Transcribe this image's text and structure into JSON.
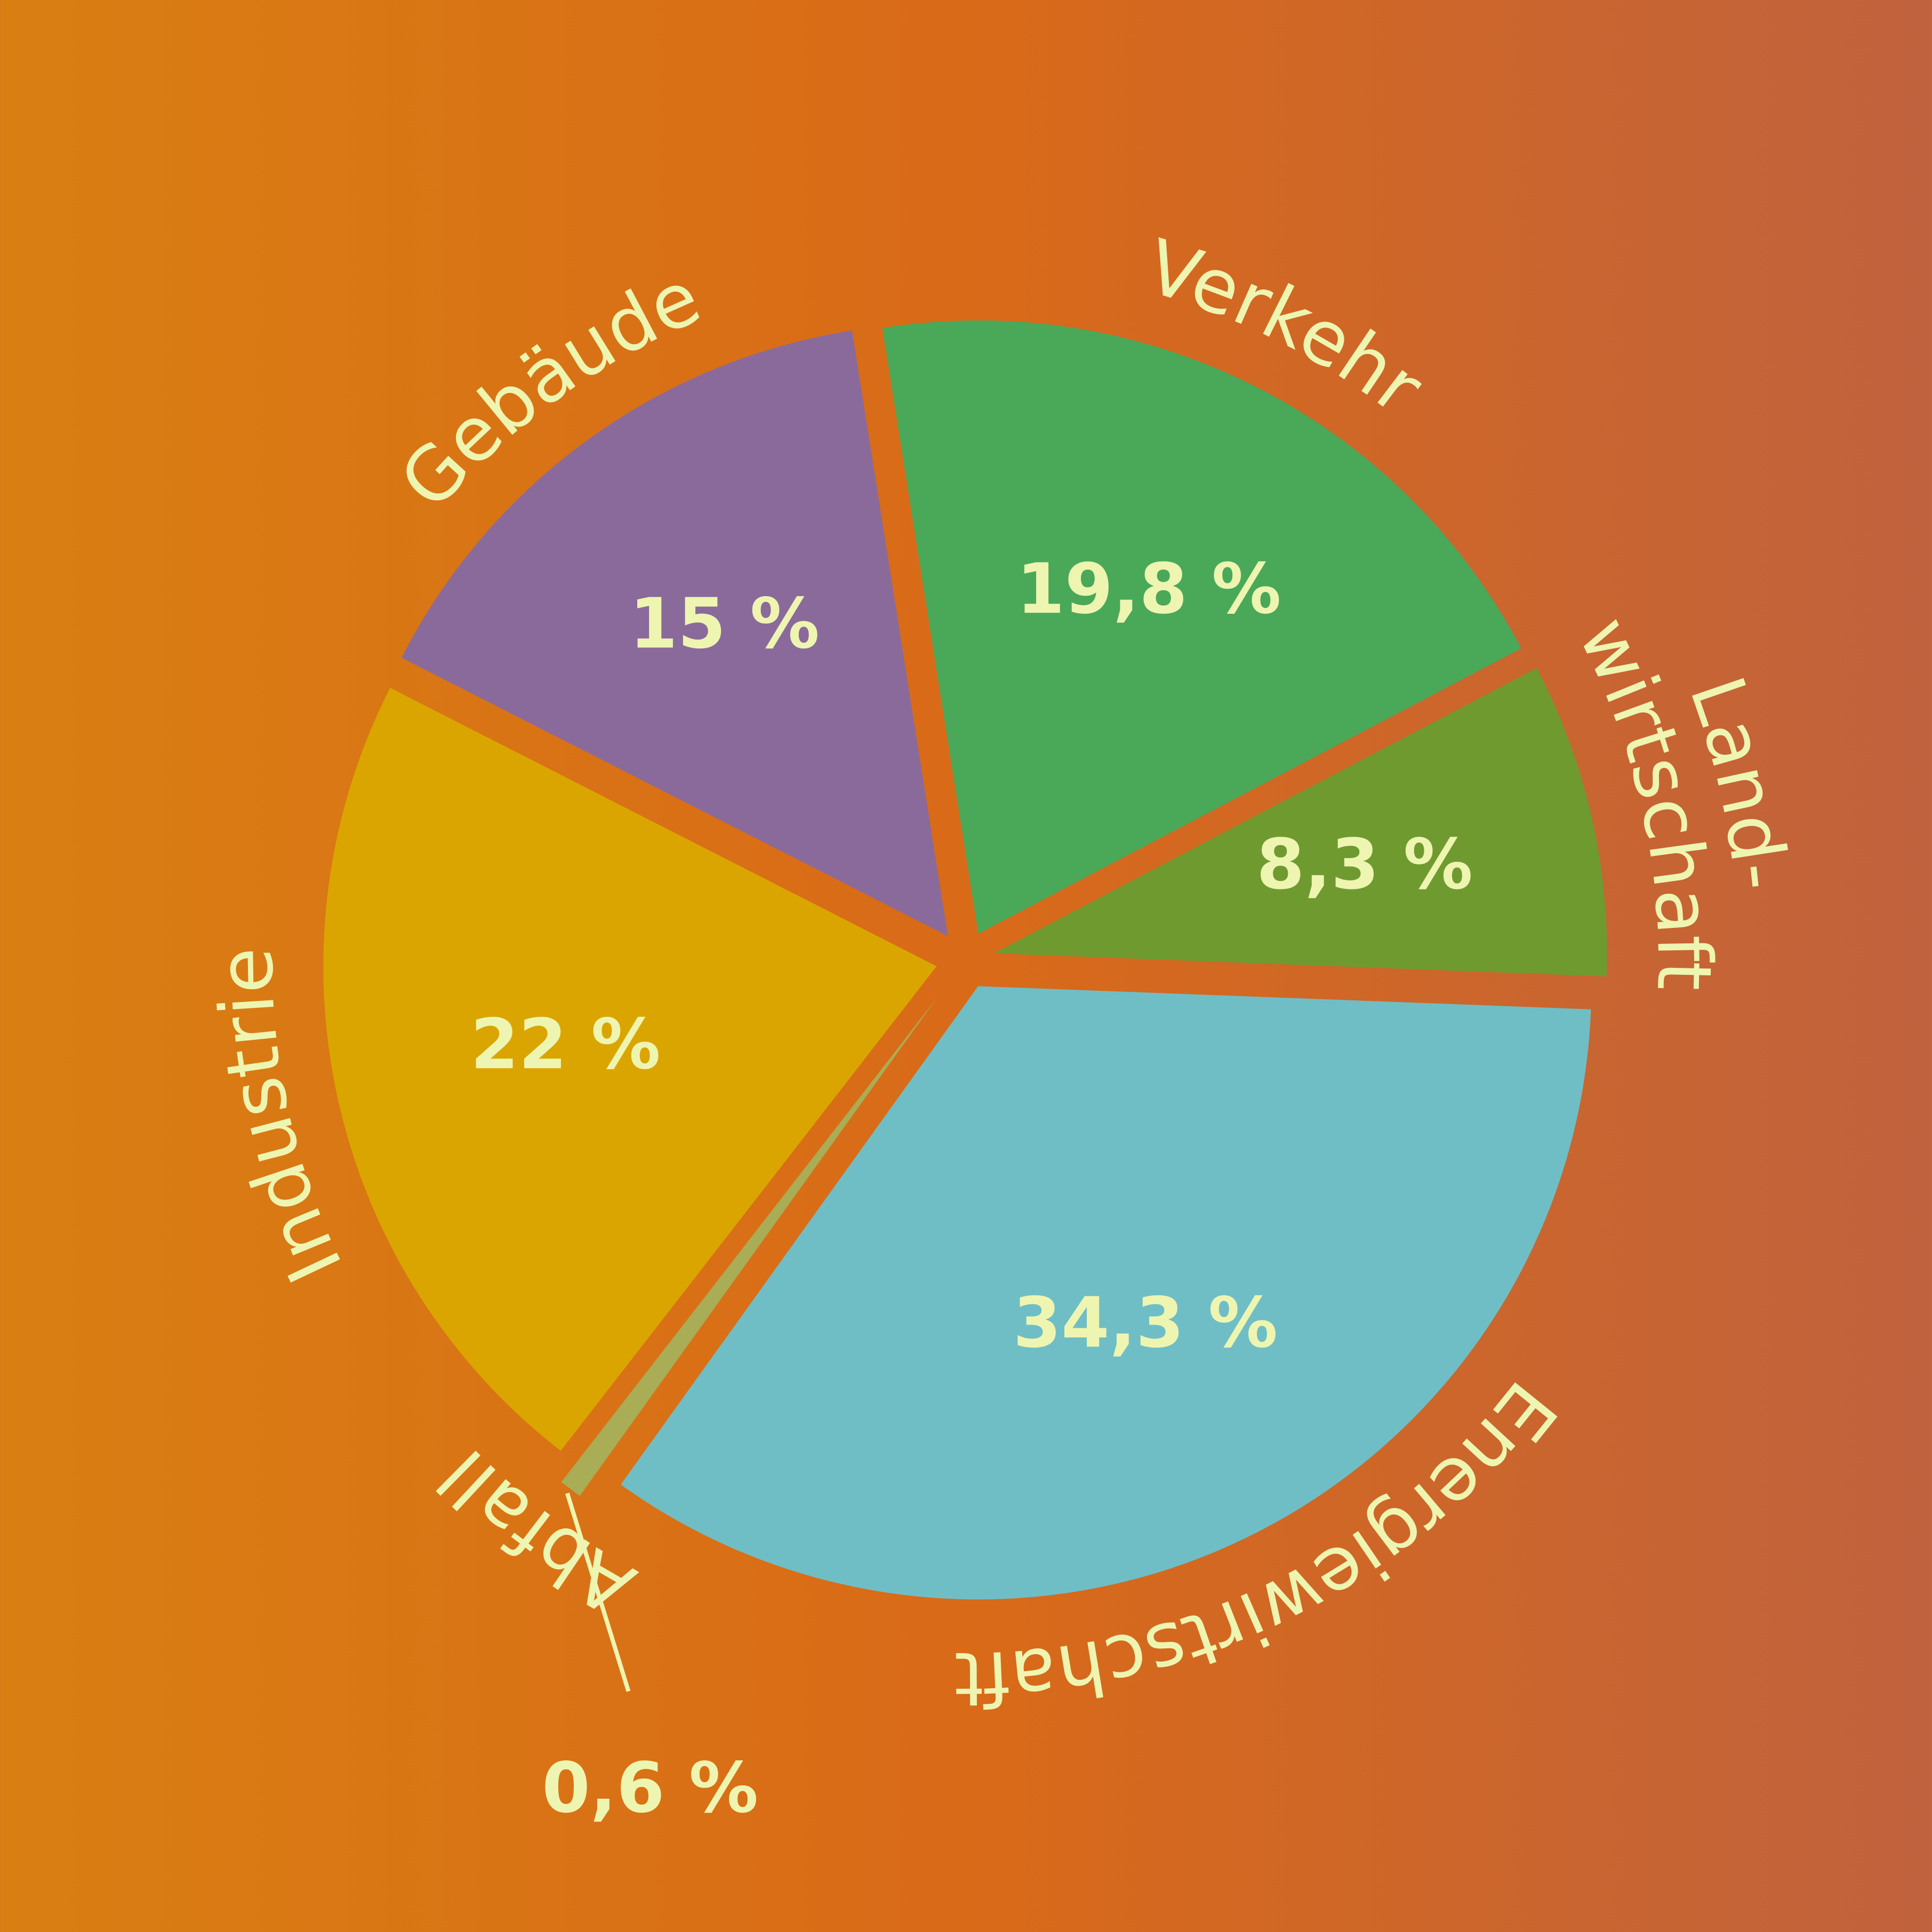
{
  "chart_data": {
    "type": "pie",
    "categories": [
      "Verkehr",
      "Land-\nwirtschaft",
      "Energiewirtschaft",
      "Abfall",
      "Industrie",
      "Gebäude"
    ],
    "values": [
      19.8,
      8.3,
      34.3,
      0.6,
      22,
      15
    ],
    "value_labels": [
      "19,8 %",
      "8,3 %",
      "34,3 %",
      "0,6 %",
      "22 %",
      "15 %"
    ],
    "colors": [
      "#4aa859",
      "#6f9a30",
      "#6fbec6",
      "#a9ad55",
      "#dba500",
      "#8a6a9a"
    ]
  }
}
